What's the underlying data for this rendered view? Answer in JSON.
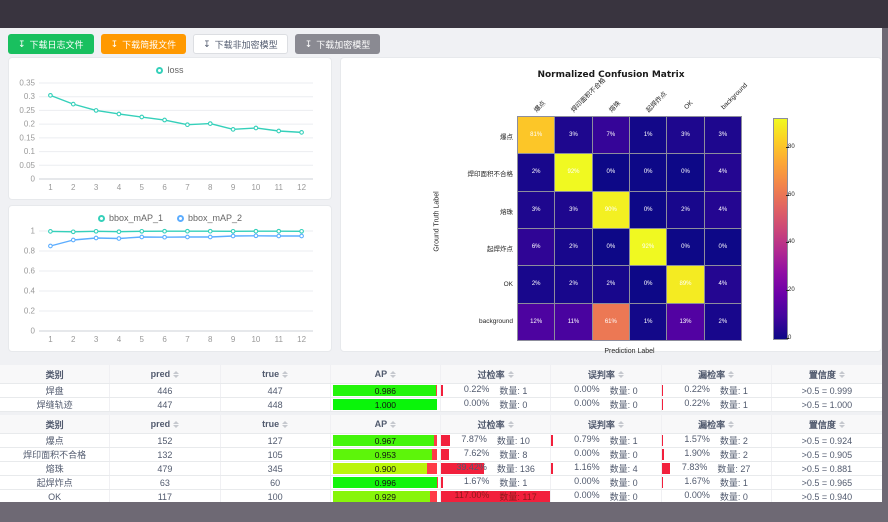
{
  "colors": {
    "top_bar": "#39343f",
    "frame": "#6e6974",
    "page_bg": "#f0f1f4",
    "success_green": "#19c05f",
    "warning_orange": "#ff9900",
    "gray_button": "#8a8a92",
    "loss_line": "#35d0ba",
    "map1_line": "#35d0ba",
    "map2_line": "#5cadff",
    "rate_bar_red": "#f2203c",
    "ap_remainder_red": "#ff3b47"
  },
  "toolbar": {
    "buttons": [
      {
        "label": "下载日志文件",
        "style": "success"
      },
      {
        "label": "下载简报文件",
        "style": "warning"
      },
      {
        "label": "下载非加密模型",
        "style": "default"
      },
      {
        "label": "下载加密模型",
        "style": "gray"
      }
    ],
    "download_icon": "↧"
  },
  "chart_data": [
    {
      "type": "line",
      "x": [
        1,
        2,
        3,
        4,
        5,
        6,
        7,
        8,
        9,
        10,
        11,
        12
      ],
      "series": [
        {
          "name": "loss",
          "color": "#35d0ba",
          "values": [
            0.305,
            0.273,
            0.25,
            0.237,
            0.226,
            0.215,
            0.198,
            0.202,
            0.181,
            0.186,
            0.175,
            0.17
          ]
        }
      ],
      "ylim": [
        0,
        0.35
      ],
      "yticks": [
        "0",
        "0.05",
        "0.1",
        "0.15",
        "0.2",
        "0.25",
        "0.3",
        "0.35"
      ],
      "legend_position": "top-center",
      "grid": true
    },
    {
      "type": "line",
      "x": [
        1,
        2,
        3,
        4,
        5,
        6,
        7,
        8,
        9,
        10,
        11,
        12
      ],
      "series": [
        {
          "name": "bbox_mAP_1",
          "color": "#35d0ba",
          "values": [
            0.996,
            0.992,
            0.997,
            0.993,
            0.997,
            0.998,
            0.998,
            0.998,
            0.997,
            0.998,
            0.998,
            0.997
          ]
        },
        {
          "name": "bbox_mAP_2",
          "color": "#5cadff",
          "values": [
            0.85,
            0.91,
            0.93,
            0.925,
            0.94,
            0.938,
            0.94,
            0.94,
            0.95,
            0.952,
            0.95,
            0.95
          ]
        }
      ],
      "ylim": [
        0,
        1
      ],
      "yticks": [
        "0",
        "0.2",
        "0.4",
        "0.6",
        "0.8",
        "1"
      ],
      "legend_position": "top-center",
      "grid": true
    },
    {
      "type": "heatmap",
      "title": "Normalized Confusion Matrix",
      "xlabel": "Prediction Label",
      "ylabel": "Ground Truth Label",
      "labels": [
        "爆点",
        "焊印面积不合格",
        "熔珠",
        "起焊炸点",
        "OK",
        "background"
      ],
      "matrix": [
        [
          81,
          3,
          7,
          1,
          3,
          3
        ],
        [
          2,
          92,
          0,
          0,
          0,
          4
        ],
        [
          3,
          3,
          90,
          0,
          2,
          4
        ],
        [
          6,
          2,
          0,
          92,
          0,
          0
        ],
        [
          2,
          2,
          2,
          0,
          89,
          4
        ],
        [
          12,
          11,
          61,
          1,
          13,
          2
        ]
      ],
      "unit": "%",
      "vmax": 92,
      "colormap": "plasma",
      "colorbar_ticks": [
        0,
        20,
        40,
        60,
        80
      ]
    }
  ],
  "tables": {
    "columns": [
      "类别",
      "pred",
      "true",
      "AP",
      "过检率",
      "误判率",
      "漏检率",
      "置信度"
    ],
    "count_label": "数量:",
    "table1": [
      {
        "cls": "焊盘",
        "pred": "446",
        "true": "447",
        "ap": "0.986",
        "over": {
          "pct": "0.22%",
          "n": "1"
        },
        "mis": {
          "pct": "0.00%",
          "n": "0"
        },
        "miss": {
          "pct": "0.22%",
          "n": "1"
        },
        "conf": ">0.5 = 0.999"
      },
      {
        "cls": "焊缝轨迹",
        "pred": "447",
        "true": "448",
        "ap": "1.000",
        "over": {
          "pct": "0.00%",
          "n": "0"
        },
        "mis": {
          "pct": "0.00%",
          "n": "0"
        },
        "miss": {
          "pct": "0.22%",
          "n": "1"
        },
        "conf": ">0.5 = 1.000"
      }
    ],
    "table2": [
      {
        "cls": "爆点",
        "pred": "152",
        "true": "127",
        "ap": "0.967",
        "over": {
          "pct": "7.87%",
          "n": "10"
        },
        "mis": {
          "pct": "0.79%",
          "n": "1"
        },
        "miss": {
          "pct": "1.57%",
          "n": "2"
        },
        "conf": ">0.5 = 0.924"
      },
      {
        "cls": "焊印面积不合格",
        "pred": "132",
        "true": "105",
        "ap": "0.953",
        "over": {
          "pct": "7.62%",
          "n": "8"
        },
        "mis": {
          "pct": "0.00%",
          "n": "0"
        },
        "miss": {
          "pct": "1.90%",
          "n": "2"
        },
        "conf": ">0.5 = 0.905"
      },
      {
        "cls": "熔珠",
        "pred": "479",
        "true": "345",
        "ap": "0.900",
        "over": {
          "pct": "39.42%",
          "n": "136"
        },
        "mis": {
          "pct": "1.16%",
          "n": "4"
        },
        "miss": {
          "pct": "7.83%",
          "n": "27"
        },
        "conf": ">0.5 = 0.881"
      },
      {
        "cls": "起焊炸点",
        "pred": "63",
        "true": "60",
        "ap": "0.996",
        "over": {
          "pct": "1.67%",
          "n": "1"
        },
        "mis": {
          "pct": "0.00%",
          "n": "0"
        },
        "miss": {
          "pct": "1.67%",
          "n": "1"
        },
        "conf": ">0.5 = 0.965"
      },
      {
        "cls": "OK",
        "pred": "117",
        "true": "100",
        "ap": "0.929",
        "over": {
          "pct": "117.00%",
          "n": "117"
        },
        "mis": {
          "pct": "0.00%",
          "n": "0"
        },
        "miss": {
          "pct": "0.00%",
          "n": "0"
        },
        "conf": ">0.5 = 0.940"
      }
    ]
  }
}
